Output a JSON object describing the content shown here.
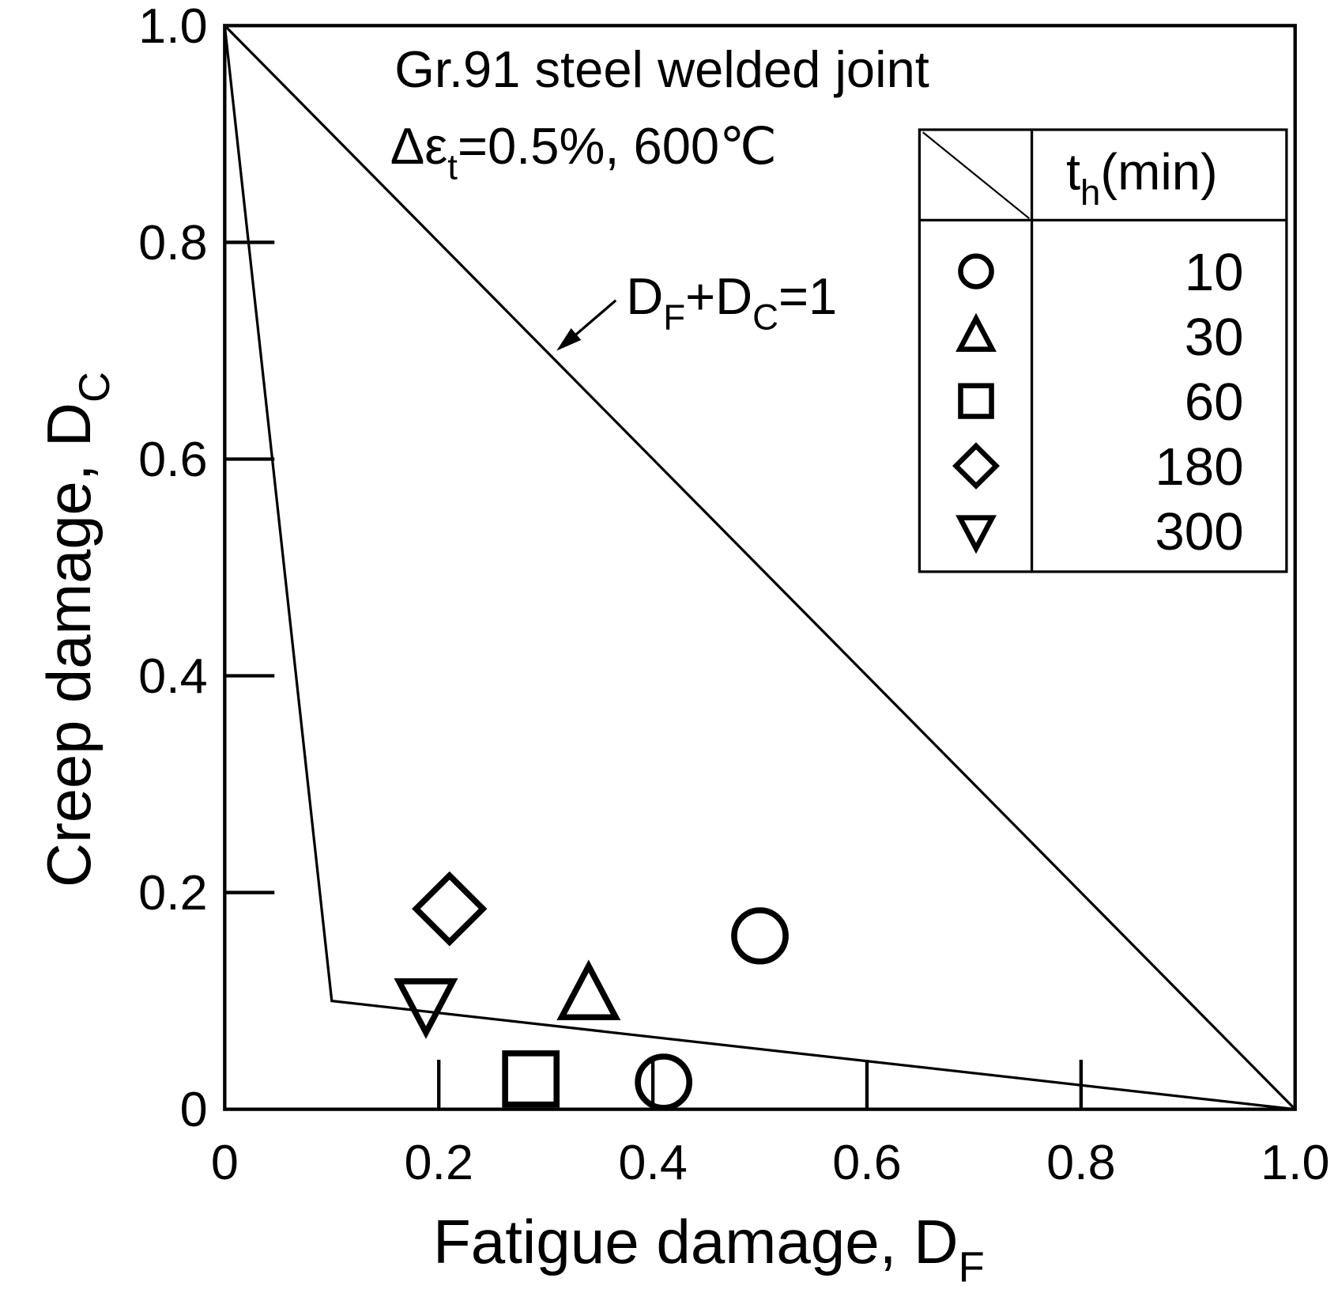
{
  "chart_data": {
    "type": "scatter",
    "title": "Gr.91 steel welded joint",
    "subtitle": {
      "prefix": "Δε",
      "sub": "t",
      "suffix": "=0.5%, 600℃"
    },
    "xlabel": {
      "main": "Fatigue damage, D",
      "sub": "F"
    },
    "ylabel": {
      "main": "Creep damage, D",
      "sub": "C"
    },
    "xlim": [
      0,
      1.0
    ],
    "ylim": [
      0,
      1.0
    ],
    "x_ticks": [
      "0",
      "0.2",
      "0.4",
      "0.6",
      "0.8",
      "1.0"
    ],
    "y_ticks": [
      "0",
      "0.2",
      "0.4",
      "0.6",
      "0.8",
      "1.0"
    ],
    "grid": false,
    "legend": {
      "placement": "top-right",
      "header": {
        "main": "t",
        "sub": "h",
        "suffix": "(min)"
      },
      "entries": [
        {
          "marker": "circle",
          "label": "10"
        },
        {
          "marker": "triangle-up",
          "label": "30"
        },
        {
          "marker": "square",
          "label": "60"
        },
        {
          "marker": "diamond",
          "label": "180"
        },
        {
          "marker": "triangle-down",
          "label": "300"
        }
      ]
    },
    "series": [
      {
        "marker": "circle",
        "label": "10",
        "points": [
          [
            0.5,
            0.16
          ],
          [
            0.41,
            0.025
          ]
        ]
      },
      {
        "marker": "triangle-up",
        "label": "30",
        "points": [
          [
            0.34,
            0.105
          ]
        ]
      },
      {
        "marker": "square",
        "label": "60",
        "points": [
          [
            0.286,
            0.028
          ]
        ]
      },
      {
        "marker": "diamond",
        "label": "180",
        "points": [
          [
            0.21,
            0.185
          ]
        ]
      },
      {
        "marker": "triangle-down",
        "label": "300",
        "points": [
          [
            0.188,
            0.098
          ]
        ]
      }
    ],
    "lines": [
      {
        "points": [
          [
            0,
            1
          ],
          [
            1,
            0
          ]
        ]
      },
      {
        "points": [
          [
            0,
            1
          ],
          [
            0.1,
            0.1
          ],
          [
            1,
            0
          ]
        ]
      }
    ],
    "annotation": {
      "parts": [
        [
          "D",
          "F"
        ],
        [
          "+D",
          "C"
        ],
        [
          "=1",
          ""
        ]
      ],
      "arrow_to": [
        0.31,
        0.7
      ]
    }
  }
}
